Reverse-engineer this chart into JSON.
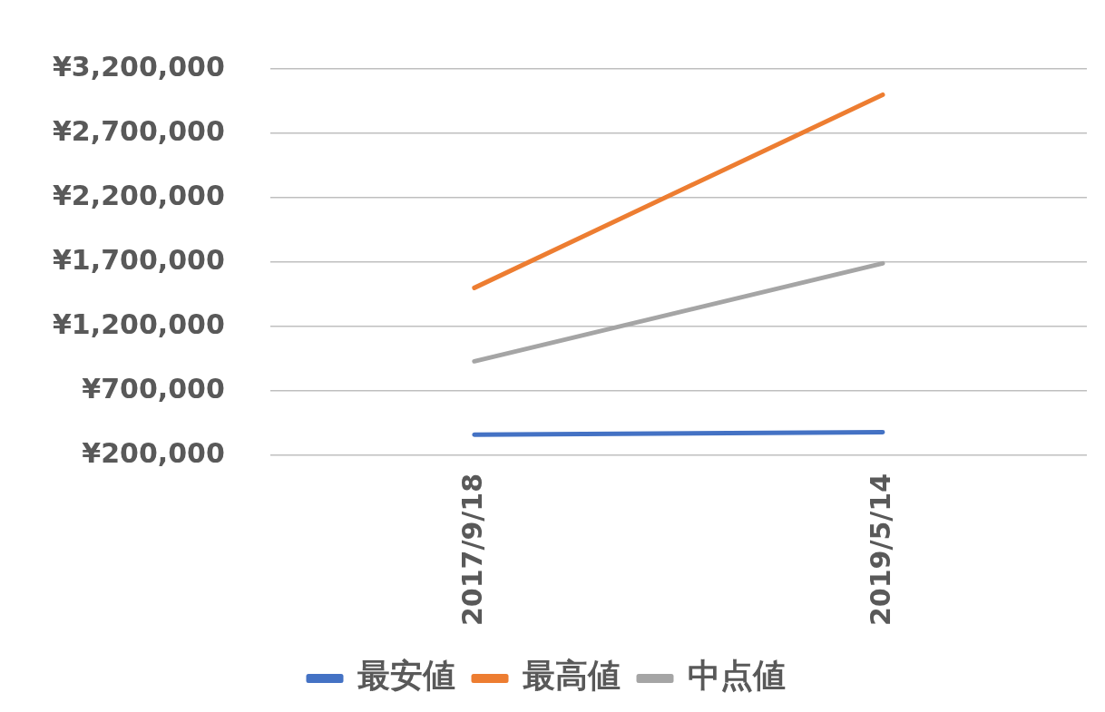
{
  "chart_data": {
    "type": "line",
    "categories": [
      "2017/9/18",
      "2019/5/14"
    ],
    "series": [
      {
        "name": "最安値",
        "color": "#4472c4",
        "values": [
          360000,
          380000
        ]
      },
      {
        "name": "最高値",
        "color": "#ed7d31",
        "values": [
          1500000,
          3000000
        ]
      },
      {
        "name": "中点値",
        "color": "#a5a5a5",
        "values": [
          930000,
          1690000
        ]
      }
    ],
    "ylim": [
      200000,
      3200000
    ],
    "yticks": [
      {
        "value": 200000,
        "label": "¥200,000"
      },
      {
        "value": 700000,
        "label": "¥700,000"
      },
      {
        "value": 1200000,
        "label": "¥1,200,000"
      },
      {
        "value": 1700000,
        "label": "¥1,700,000"
      },
      {
        "value": 2200000,
        "label": "¥2,200,000"
      },
      {
        "value": 2700000,
        "label": "¥2,700,000"
      },
      {
        "value": 3200000,
        "label": "¥3,200,000"
      }
    ],
    "grid": "y",
    "legend": "bottom",
    "marker": "none",
    "line_style": "solid"
  }
}
